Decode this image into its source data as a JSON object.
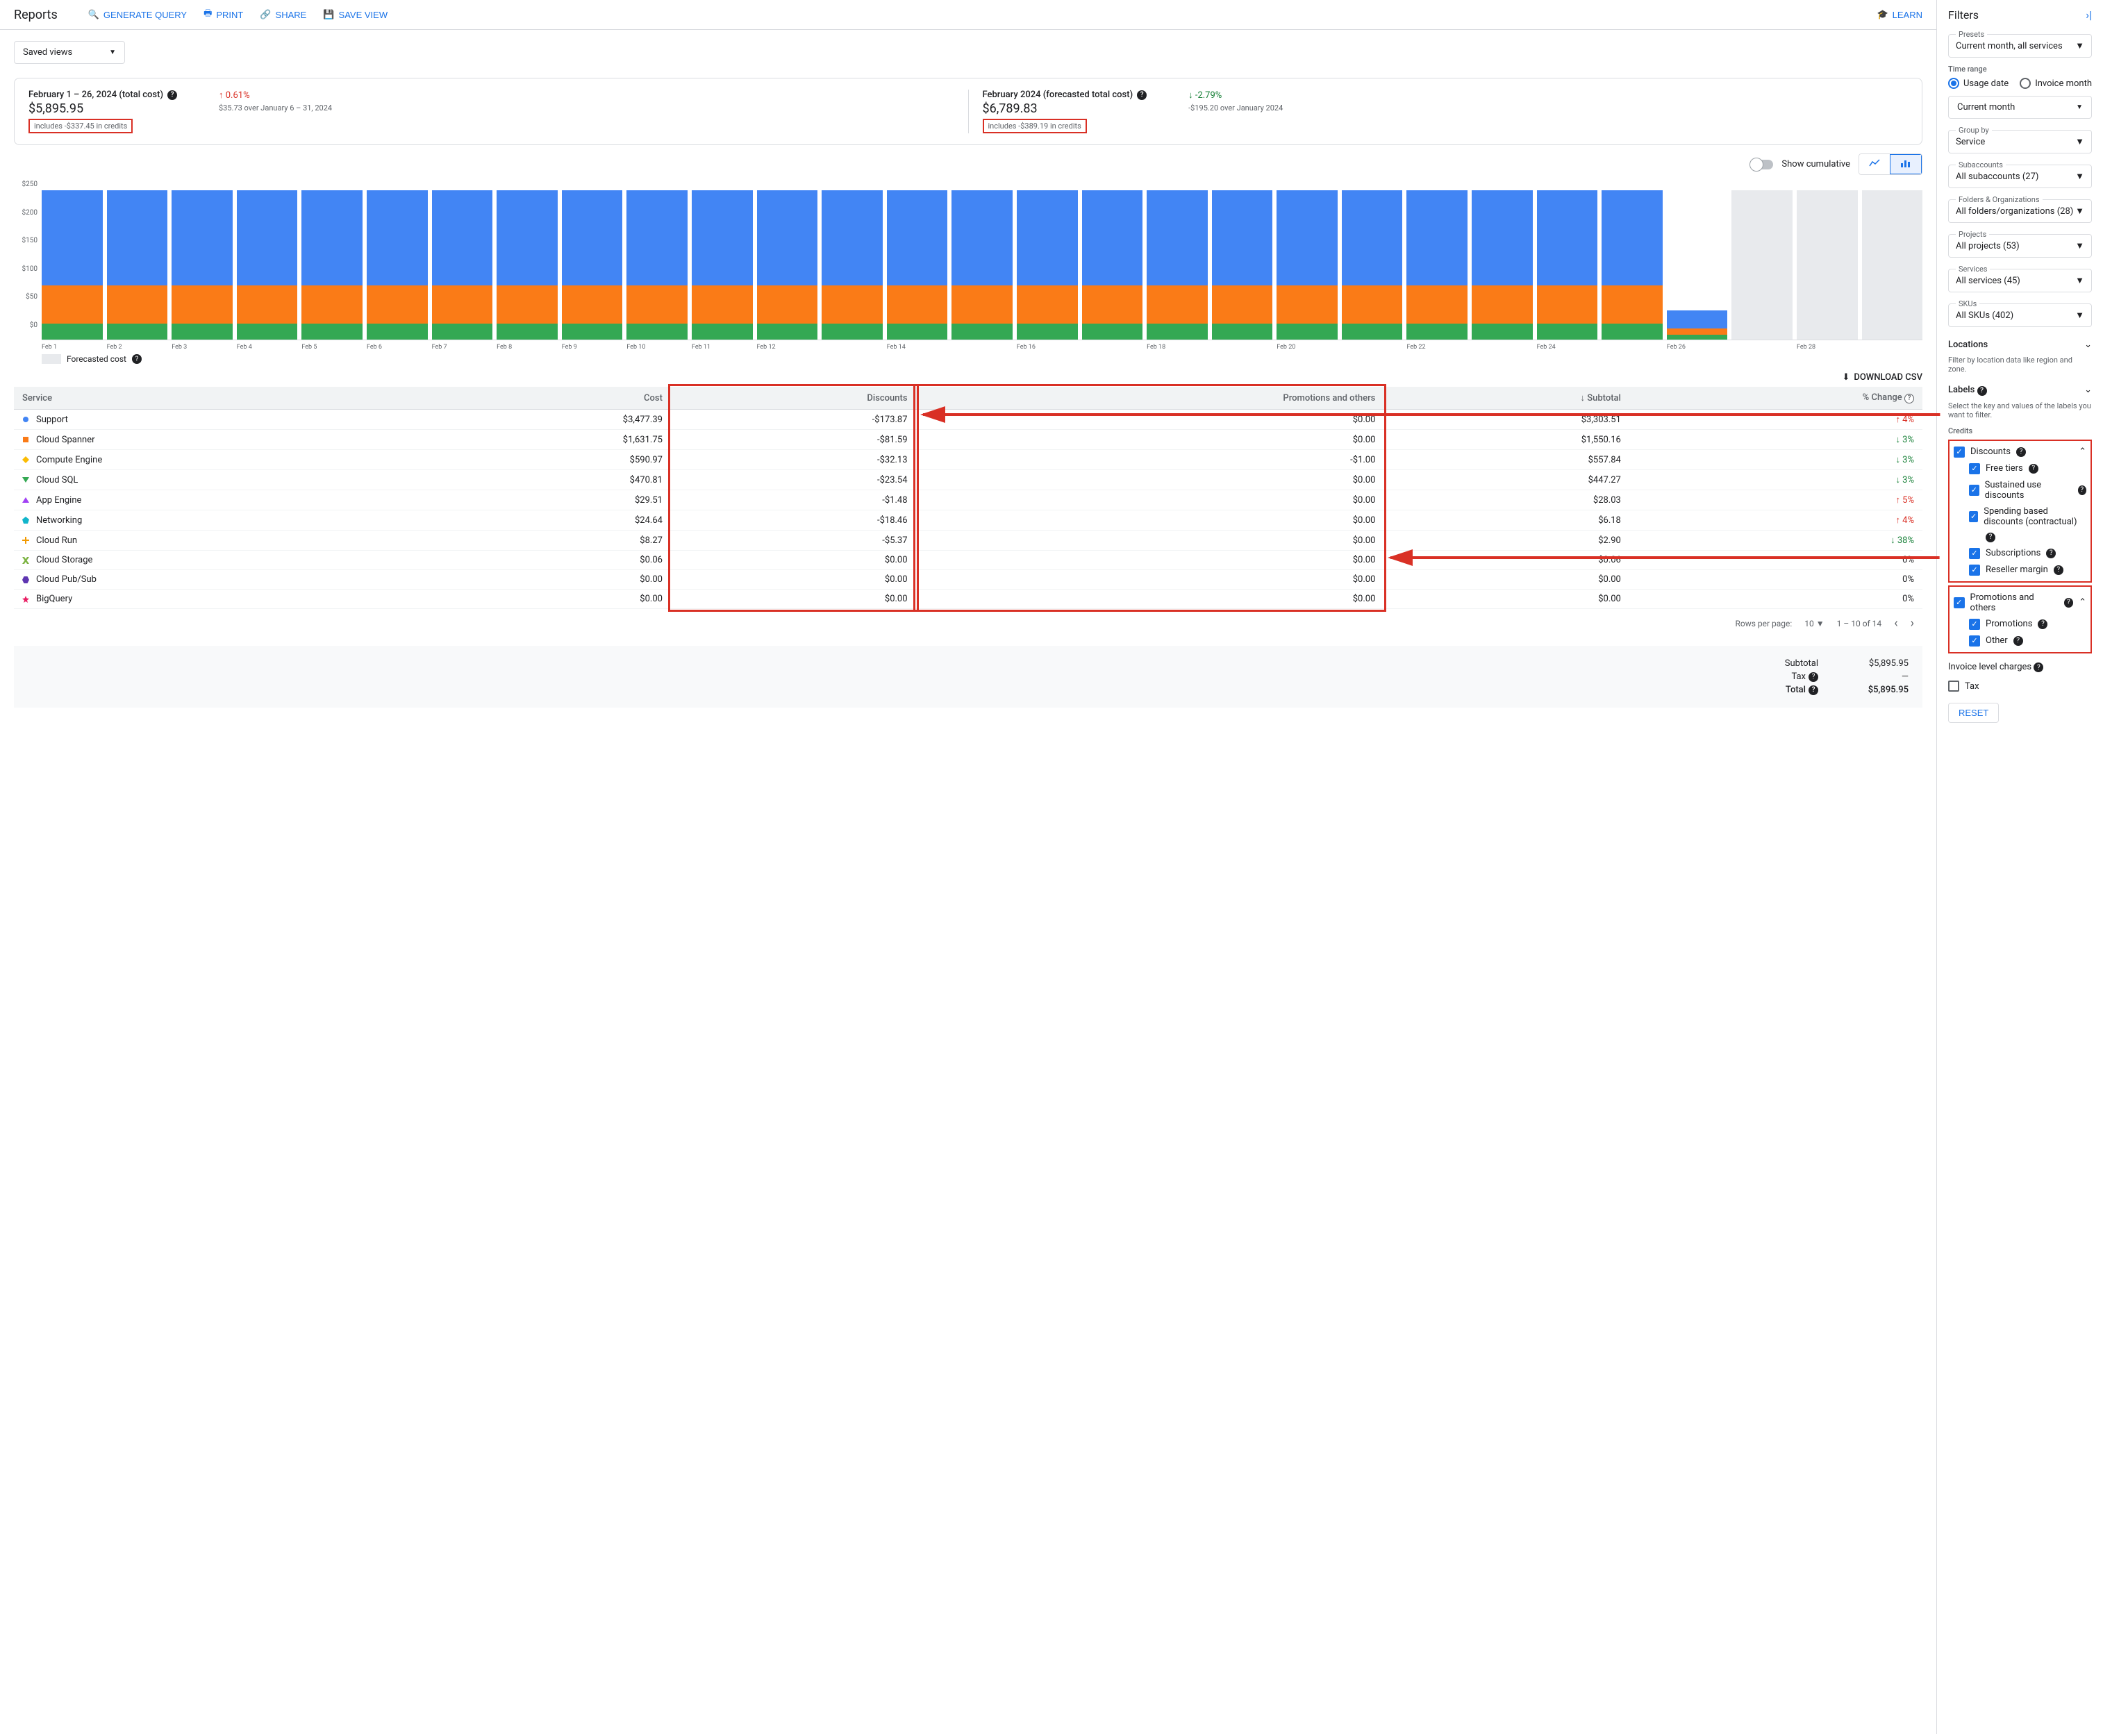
{
  "header": {
    "title": "Reports",
    "generate_query": "GENERATE QUERY",
    "print": "PRINT",
    "share": "SHARE",
    "save_view": "SAVE VIEW",
    "learn": "LEARN"
  },
  "saved_views": "Saved views",
  "cards": {
    "actual": {
      "title": "February 1 – 26, 2024 (total cost)",
      "value": "$5,895.95",
      "credits": "includes -$337.45 in credits",
      "delta": "0.61%",
      "delta_dir": "up",
      "delta_note": "$35.73 over January 6 – 31, 2024"
    },
    "forecast": {
      "title": "February 2024 (forecasted total cost)",
      "value": "$6,789.83",
      "credits": "includes -$389.19 in credits",
      "delta": "-2.79%",
      "delta_dir": "down",
      "delta_note": "-$195.20 over January 2024"
    }
  },
  "chart": {
    "toggle_label": "Show cumulative",
    "ylim": [
      0,
      250
    ],
    "yticks": [
      "$250",
      "$200",
      "$150",
      "$100",
      "$50",
      "$0"
    ],
    "xlabels": [
      "Feb 1",
      "Feb 2",
      "Feb 3",
      "Feb 4",
      "Feb 5",
      "Feb 6",
      "Feb 7",
      "Feb 8",
      "Feb 9",
      "Feb 10",
      "Feb 11",
      "Feb 12",
      "",
      "Feb 14",
      "",
      "Feb 16",
      "",
      "Feb 18",
      "",
      "Feb 20",
      "",
      "Feb 22",
      "",
      "Feb 24",
      "",
      "Feb 26",
      "",
      "Feb 28",
      ""
    ],
    "colors": {
      "blue": "#4285f4",
      "orange": "#fa7b17",
      "green": "#34a853",
      "forecast": "#e8eaed"
    },
    "bars": [
      {
        "stack": [
          {
            "c": "green",
            "v": 25
          },
          {
            "c": "orange",
            "v": 60
          },
          {
            "c": "blue",
            "v": 150
          }
        ]
      },
      {
        "stack": [
          {
            "c": "green",
            "v": 25
          },
          {
            "c": "orange",
            "v": 60
          },
          {
            "c": "blue",
            "v": 150
          }
        ]
      },
      {
        "stack": [
          {
            "c": "green",
            "v": 25
          },
          {
            "c": "orange",
            "v": 60
          },
          {
            "c": "blue",
            "v": 150
          }
        ]
      },
      {
        "stack": [
          {
            "c": "green",
            "v": 25
          },
          {
            "c": "orange",
            "v": 60
          },
          {
            "c": "blue",
            "v": 150
          }
        ]
      },
      {
        "stack": [
          {
            "c": "green",
            "v": 25
          },
          {
            "c": "orange",
            "v": 60
          },
          {
            "c": "blue",
            "v": 150
          }
        ]
      },
      {
        "stack": [
          {
            "c": "green",
            "v": 25
          },
          {
            "c": "orange",
            "v": 60
          },
          {
            "c": "blue",
            "v": 150
          }
        ]
      },
      {
        "stack": [
          {
            "c": "green",
            "v": 25
          },
          {
            "c": "orange",
            "v": 60
          },
          {
            "c": "blue",
            "v": 150
          }
        ]
      },
      {
        "stack": [
          {
            "c": "green",
            "v": 25
          },
          {
            "c": "orange",
            "v": 60
          },
          {
            "c": "blue",
            "v": 150
          }
        ]
      },
      {
        "stack": [
          {
            "c": "green",
            "v": 25
          },
          {
            "c": "orange",
            "v": 60
          },
          {
            "c": "blue",
            "v": 150
          }
        ]
      },
      {
        "stack": [
          {
            "c": "green",
            "v": 25
          },
          {
            "c": "orange",
            "v": 60
          },
          {
            "c": "blue",
            "v": 150
          }
        ]
      },
      {
        "stack": [
          {
            "c": "green",
            "v": 25
          },
          {
            "c": "orange",
            "v": 60
          },
          {
            "c": "blue",
            "v": 150
          }
        ]
      },
      {
        "stack": [
          {
            "c": "green",
            "v": 25
          },
          {
            "c": "orange",
            "v": 60
          },
          {
            "c": "blue",
            "v": 150
          }
        ]
      },
      {
        "stack": [
          {
            "c": "green",
            "v": 25
          },
          {
            "c": "orange",
            "v": 60
          },
          {
            "c": "blue",
            "v": 150
          }
        ]
      },
      {
        "stack": [
          {
            "c": "green",
            "v": 25
          },
          {
            "c": "orange",
            "v": 60
          },
          {
            "c": "blue",
            "v": 150
          }
        ]
      },
      {
        "stack": [
          {
            "c": "green",
            "v": 25
          },
          {
            "c": "orange",
            "v": 60
          },
          {
            "c": "blue",
            "v": 150
          }
        ]
      },
      {
        "stack": [
          {
            "c": "green",
            "v": 25
          },
          {
            "c": "orange",
            "v": 60
          },
          {
            "c": "blue",
            "v": 150
          }
        ]
      },
      {
        "stack": [
          {
            "c": "green",
            "v": 25
          },
          {
            "c": "orange",
            "v": 60
          },
          {
            "c": "blue",
            "v": 150
          }
        ]
      },
      {
        "stack": [
          {
            "c": "green",
            "v": 25
          },
          {
            "c": "orange",
            "v": 60
          },
          {
            "c": "blue",
            "v": 150
          }
        ]
      },
      {
        "stack": [
          {
            "c": "green",
            "v": 25
          },
          {
            "c": "orange",
            "v": 60
          },
          {
            "c": "blue",
            "v": 150
          }
        ]
      },
      {
        "stack": [
          {
            "c": "green",
            "v": 25
          },
          {
            "c": "orange",
            "v": 60
          },
          {
            "c": "blue",
            "v": 150
          }
        ]
      },
      {
        "stack": [
          {
            "c": "green",
            "v": 25
          },
          {
            "c": "orange",
            "v": 60
          },
          {
            "c": "blue",
            "v": 150
          }
        ]
      },
      {
        "stack": [
          {
            "c": "green",
            "v": 25
          },
          {
            "c": "orange",
            "v": 60
          },
          {
            "c": "blue",
            "v": 150
          }
        ]
      },
      {
        "stack": [
          {
            "c": "green",
            "v": 25
          },
          {
            "c": "orange",
            "v": 60
          },
          {
            "c": "blue",
            "v": 150
          }
        ]
      },
      {
        "stack": [
          {
            "c": "green",
            "v": 25
          },
          {
            "c": "orange",
            "v": 60
          },
          {
            "c": "blue",
            "v": 150
          }
        ]
      },
      {
        "stack": [
          {
            "c": "green",
            "v": 25
          },
          {
            "c": "orange",
            "v": 60
          },
          {
            "c": "blue",
            "v": 150
          }
        ]
      },
      {
        "stack": [
          {
            "c": "green",
            "v": 8
          },
          {
            "c": "orange",
            "v": 10
          },
          {
            "c": "blue",
            "v": 28
          }
        ]
      },
      {
        "stack": [
          {
            "c": "forecast",
            "v": 235
          }
        ]
      },
      {
        "stack": [
          {
            "c": "forecast",
            "v": 235
          }
        ]
      },
      {
        "stack": [
          {
            "c": "forecast",
            "v": 235
          }
        ]
      }
    ],
    "legend_forecast": "Forecasted cost"
  },
  "download": "DOWNLOAD CSV",
  "table": {
    "columns": [
      "Service",
      "Cost",
      "Discounts",
      "Promotions and others",
      "Subtotal",
      "% Change"
    ],
    "rows": [
      {
        "marker": "#4285f4",
        "shape": "circle",
        "service": "Support",
        "cost": "$3,477.39",
        "discounts": "-$173.87",
        "promo": "$0.00",
        "subtotal": "$3,303.51",
        "pct": "4%",
        "dir": "up"
      },
      {
        "marker": "#fa7b17",
        "shape": "square",
        "service": "Cloud Spanner",
        "cost": "$1,631.75",
        "discounts": "-$81.59",
        "promo": "$0.00",
        "subtotal": "$1,550.16",
        "pct": "3%",
        "dir": "down"
      },
      {
        "marker": "#fbbc04",
        "shape": "diamond",
        "service": "Compute Engine",
        "cost": "$590.97",
        "discounts": "-$32.13",
        "promo": "-$1.00",
        "subtotal": "$557.84",
        "pct": "3%",
        "dir": "down"
      },
      {
        "marker": "#34a853",
        "shape": "triangle-down",
        "service": "Cloud SQL",
        "cost": "$470.81",
        "discounts": "-$23.54",
        "promo": "$0.00",
        "subtotal": "$447.27",
        "pct": "3%",
        "dir": "down"
      },
      {
        "marker": "#a142f4",
        "shape": "triangle-up",
        "service": "App Engine",
        "cost": "$29.51",
        "discounts": "-$1.48",
        "promo": "$0.00",
        "subtotal": "$28.03",
        "pct": "5%",
        "dir": "up"
      },
      {
        "marker": "#12b5cb",
        "shape": "pentagon",
        "service": "Networking",
        "cost": "$24.64",
        "discounts": "-$18.46",
        "promo": "$0.00",
        "subtotal": "$6.18",
        "pct": "4%",
        "dir": "up"
      },
      {
        "marker": "#f29900",
        "shape": "plus",
        "service": "Cloud Run",
        "cost": "$8.27",
        "discounts": "-$5.37",
        "promo": "$0.00",
        "subtotal": "$2.90",
        "pct": "38%",
        "dir": "down"
      },
      {
        "marker": "#7cb342",
        "shape": "x",
        "service": "Cloud Storage",
        "cost": "$0.06",
        "discounts": "$0.00",
        "promo": "$0.00",
        "subtotal": "$0.06",
        "pct": "0%",
        "dir": "none"
      },
      {
        "marker": "#5e35b1",
        "shape": "hex",
        "service": "Cloud Pub/Sub",
        "cost": "$0.00",
        "discounts": "$0.00",
        "promo": "$0.00",
        "subtotal": "$0.00",
        "pct": "0%",
        "dir": "none"
      },
      {
        "marker": "#e91e63",
        "shape": "star",
        "service": "BigQuery",
        "cost": "$0.00",
        "discounts": "$0.00",
        "promo": "$0.00",
        "subtotal": "$0.00",
        "pct": "0%",
        "dir": "none"
      }
    ],
    "subtotal_sort_icon": "↓"
  },
  "pager": {
    "rows_label": "Rows per page:",
    "rows_value": "10",
    "range": "1 – 10 of 14"
  },
  "totals": {
    "subtotal_label": "Subtotal",
    "subtotal": "$5,895.95",
    "tax_label": "Tax",
    "tax": "—",
    "total_label": "Total",
    "total": "$5,895.95"
  },
  "filters": {
    "title": "Filters",
    "preset_legend": "Presets",
    "preset": "Current month, all services",
    "time_range_label": "Time range",
    "usage_date": "Usage date",
    "invoice_month": "Invoice month",
    "current_month": "Current month",
    "group_by_legend": "Group by",
    "group_by": "Service",
    "subaccounts_legend": "Subaccounts",
    "subaccounts": "All subaccounts (27)",
    "folders_legend": "Folders & Organizations",
    "folders": "All folders/organizations (28)",
    "projects_legend": "Projects",
    "projects": "All projects (53)",
    "services_legend": "Services",
    "services": "All services (45)",
    "skus_legend": "SKUs",
    "skus": "All SKUs (402)",
    "locations_label": "Locations",
    "locations_hint": "Filter by location data like region and zone.",
    "labels_label": "Labels",
    "labels_hint": "Select the key and values of the labels you want to filter.",
    "credits_label": "Credits",
    "discounts": "Discounts",
    "free_tiers": "Free tiers",
    "sustained": "Sustained use discounts",
    "spending": "Spending based discounts (contractual)",
    "subscriptions": "Subscriptions",
    "reseller": "Reseller margin",
    "promotions_others": "Promotions and others",
    "promotions": "Promotions",
    "other": "Other",
    "invoice_charges": "Invoice level charges",
    "tax": "Tax",
    "reset": "RESET"
  }
}
